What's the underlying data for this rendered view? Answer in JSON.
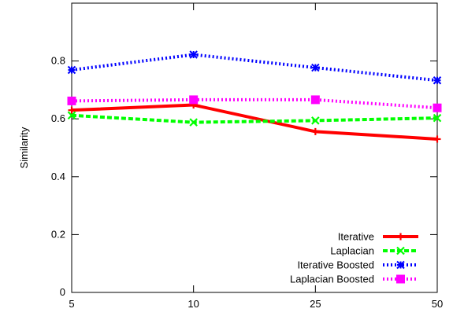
{
  "chart_data": {
    "type": "line",
    "categories": [
      "5",
      "10",
      "25",
      "50"
    ],
    "ylabel": "Similarity",
    "xlabel": "",
    "ylim": [
      0,
      1.0
    ],
    "yticks": [
      "0",
      "0.2",
      "0.4",
      "0.6",
      "0.8"
    ],
    "grid": false,
    "legend_position": "bottom-right",
    "series": [
      {
        "name": "Iterative",
        "values": [
          0.63,
          0.648,
          0.556,
          0.53
        ],
        "color": "#ff0000",
        "dash": "solid",
        "marker": "plus"
      },
      {
        "name": "Laplacian",
        "values": [
          0.612,
          0.588,
          0.594,
          0.603
        ],
        "color": "#00ff00",
        "dash": "dashed",
        "marker": "x"
      },
      {
        "name": "Iterative Boosted",
        "values": [
          0.769,
          0.822,
          0.777,
          0.733
        ],
        "color": "#0000ff",
        "dash": "dotted",
        "marker": "star"
      },
      {
        "name": "Laplacian Boosted",
        "values": [
          0.662,
          0.666,
          0.666,
          0.638
        ],
        "color": "#ff00ff",
        "dash": "dotted",
        "marker": "square"
      }
    ]
  }
}
